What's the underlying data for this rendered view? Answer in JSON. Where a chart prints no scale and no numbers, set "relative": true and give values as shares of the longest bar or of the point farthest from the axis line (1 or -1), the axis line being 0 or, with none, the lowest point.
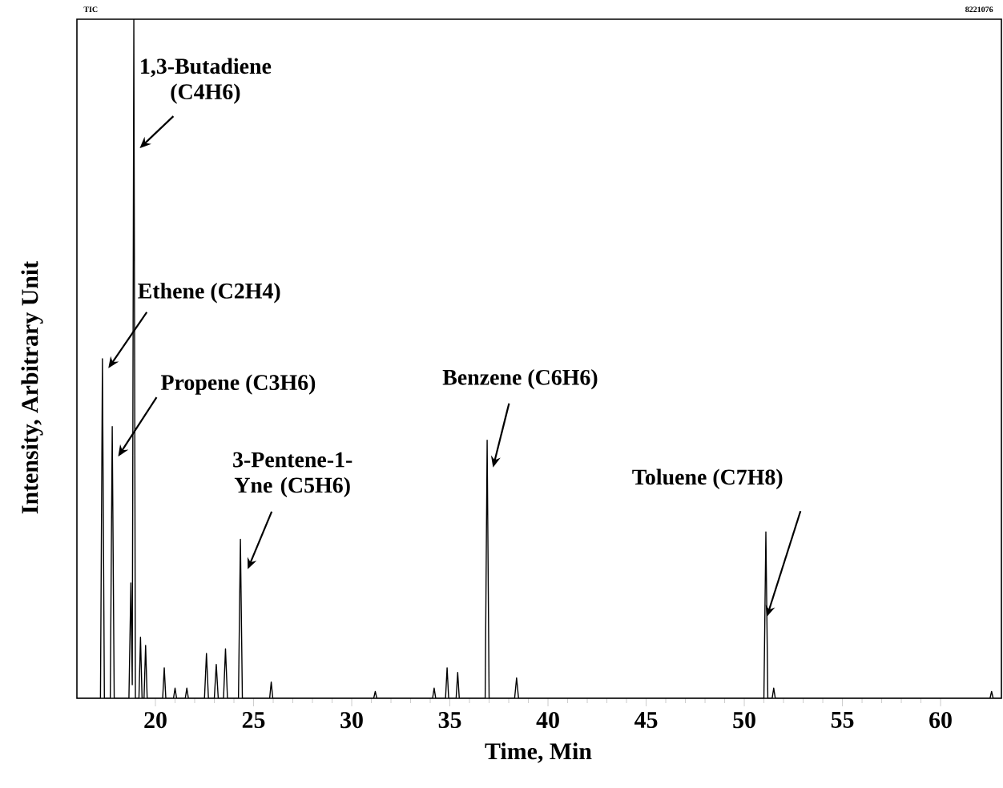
{
  "chart_data": {
    "type": "line",
    "xlabel": "Time, Min",
    "ylabel": "Intensity, Arbitrary Unit",
    "relative": true,
    "color": "#000000",
    "xlim": [
      16,
      63.1
    ],
    "xticks": [
      20,
      25,
      30,
      35,
      40,
      45,
      50,
      55,
      60
    ],
    "x": [
      16.0,
      17.2,
      17.3,
      17.4,
      17.7,
      17.8,
      17.9,
      18.65,
      18.75,
      18.82,
      18.9,
      18.98,
      19.16,
      19.24,
      19.32,
      19.42,
      19.5,
      19.58,
      20.37,
      20.45,
      20.53,
      20.92,
      21.0,
      21.08,
      21.52,
      21.6,
      21.68,
      22.5,
      22.6,
      22.7,
      23.0,
      23.1,
      23.2,
      23.47,
      23.57,
      23.67,
      24.23,
      24.33,
      24.43,
      25.82,
      25.9,
      25.98,
      31.12,
      31.2,
      31.28,
      34.12,
      34.2,
      34.28,
      34.78,
      34.86,
      34.94,
      35.32,
      35.4,
      35.48,
      36.8,
      36.9,
      37.0,
      38.3,
      38.4,
      38.5,
      51.0,
      51.1,
      51.2,
      51.42,
      51.5,
      51.58,
      62.52,
      62.6,
      62.68,
      63.1
    ],
    "values": [
      0,
      0,
      0.5,
      0,
      0,
      0.4,
      0,
      0,
      0.17,
      0.02,
      1,
      0,
      0,
      0.09,
      0,
      0,
      0.078,
      0,
      0,
      0.045,
      0,
      0,
      0.015,
      0,
      0,
      0.015,
      0,
      0,
      0.066,
      0,
      0,
      0.05,
      0,
      0,
      0.073,
      0,
      0,
      0.234,
      0,
      0,
      0.024,
      0,
      0,
      0.01,
      0,
      0,
      0.015,
      0,
      0,
      0.045,
      0,
      0,
      0.038,
      0,
      0,
      0.38,
      0,
      0,
      0.03,
      0,
      0,
      0.245,
      0,
      0,
      0.015,
      0,
      0,
      0.01,
      0,
      0
    ],
    "annotations": [
      {
        "text": "1,3-Butadiene (C4H6)",
        "x": 19.2,
        "y": 0.81
      },
      {
        "text": "Ethene (C2H4)",
        "x": 17.6,
        "y": 0.486
      },
      {
        "text": "Propene (C3H6)",
        "x": 18.1,
        "y": 0.356
      },
      {
        "text": "3-Pentene-1-Yne (C5H6)",
        "x": 24.7,
        "y": 0.19
      },
      {
        "text": "Benzene (C6H6)",
        "x": 37.2,
        "y": 0.34
      },
      {
        "text": "Toluene (C7H8)",
        "x": 51.15,
        "y": 0.12
      },
      "TIC",
      "8221076"
    ]
  }
}
